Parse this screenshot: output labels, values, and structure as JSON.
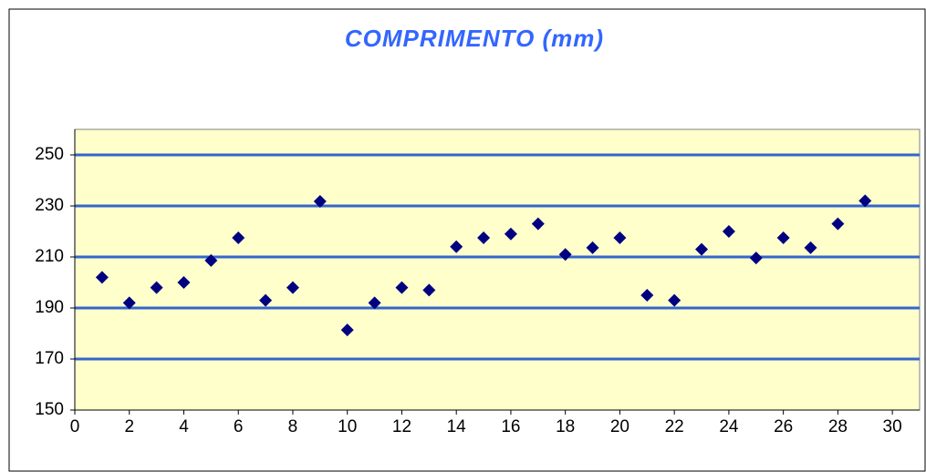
{
  "chart_data": {
    "type": "scatter",
    "title": "COMPRIMENTO (mm)",
    "x": [
      1,
      2,
      3,
      4,
      5,
      6,
      7,
      8,
      9,
      10,
      11,
      12,
      13,
      14,
      15,
      16,
      17,
      18,
      19,
      20,
      21,
      22,
      23,
      24,
      25,
      26,
      27,
      28,
      29
    ],
    "series": [
      {
        "color": "#000080",
        "values": [
          202,
          192,
          198,
          200,
          208.6,
          217.5,
          193,
          198,
          231.8,
          181.4,
          192,
          198,
          197,
          214,
          217.5,
          219,
          223,
          211,
          213.6,
          217.5,
          195,
          193,
          213,
          220,
          209.6,
          217.5,
          213.6,
          223,
          232
        ]
      }
    ],
    "xlim": [
      0,
      31
    ],
    "xticks": [
      0,
      2,
      4,
      6,
      8,
      10,
      12,
      14,
      16,
      18,
      20,
      22,
      24,
      26,
      28,
      30
    ],
    "ylim": [
      150,
      260
    ],
    "yticks": [
      150,
      170,
      190,
      210,
      230,
      250
    ],
    "grid": true,
    "grid_color": "#3366cc",
    "plot_background": "#ffffcc"
  }
}
